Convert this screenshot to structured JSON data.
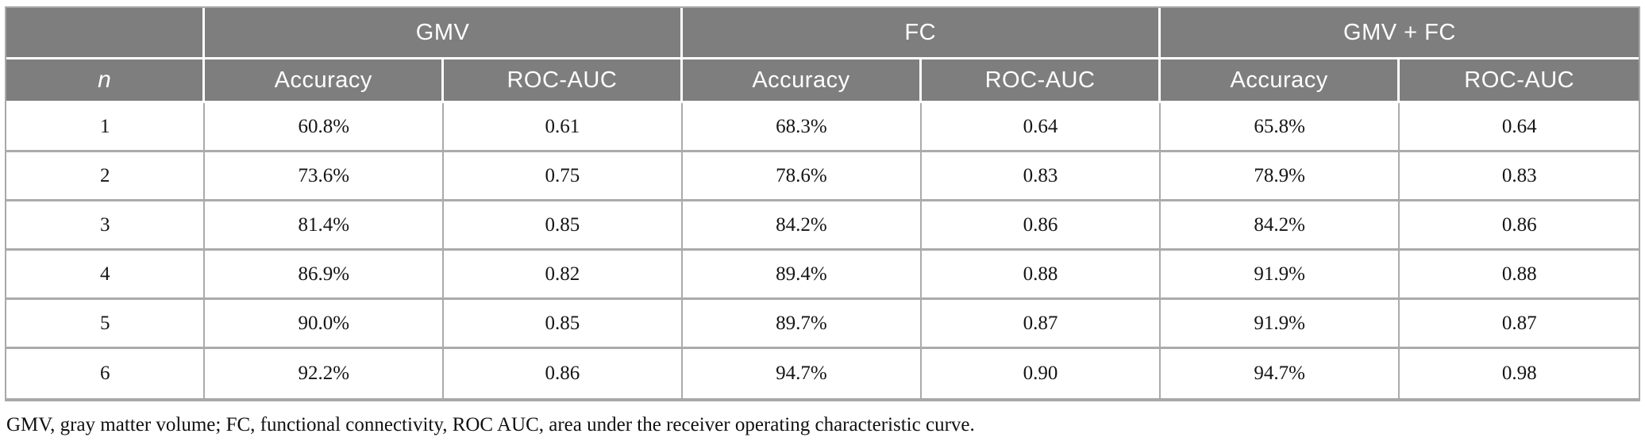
{
  "table": {
    "groups": [
      {
        "label": ""
      },
      {
        "label": "GMV"
      },
      {
        "label": "FC"
      },
      {
        "label": "GMV + FC"
      }
    ],
    "col_header": "n",
    "sub_headers": [
      "Accuracy",
      "ROC-AUC",
      "Accuracy",
      "ROC-AUC",
      "Accuracy",
      "ROC-AUC"
    ],
    "rows": [
      {
        "n": "1",
        "cells": [
          "60.8%",
          "0.61",
          "68.3%",
          "0.64",
          "65.8%",
          "0.64"
        ]
      },
      {
        "n": "2",
        "cells": [
          "73.6%",
          "0.75",
          "78.6%",
          "0.83",
          "78.9%",
          "0.83"
        ]
      },
      {
        "n": "3",
        "cells": [
          "81.4%",
          "0.85",
          "84.2%",
          "0.86",
          "84.2%",
          "0.86"
        ]
      },
      {
        "n": "4",
        "cells": [
          "86.9%",
          "0.82",
          "89.4%",
          "0.88",
          "91.9%",
          "0.88"
        ]
      },
      {
        "n": "5",
        "cells": [
          "90.0%",
          "0.85",
          "89.7%",
          "0.87",
          "91.9%",
          "0.87"
        ]
      },
      {
        "n": "6",
        "cells": [
          "92.2%",
          "0.86",
          "94.7%",
          "0.90",
          "94.7%",
          "0.98"
        ]
      }
    ],
    "footnote": "GMV, gray matter volume; FC, functional connectivity, ROC AUC, area under the receiver operating characteristic curve."
  },
  "colors": {
    "header_bg": "#7e7e7e",
    "header_text": "#ffffff",
    "body_border": "#ababab",
    "outer_border": "#a8a8a8",
    "body_text": "#151515"
  }
}
